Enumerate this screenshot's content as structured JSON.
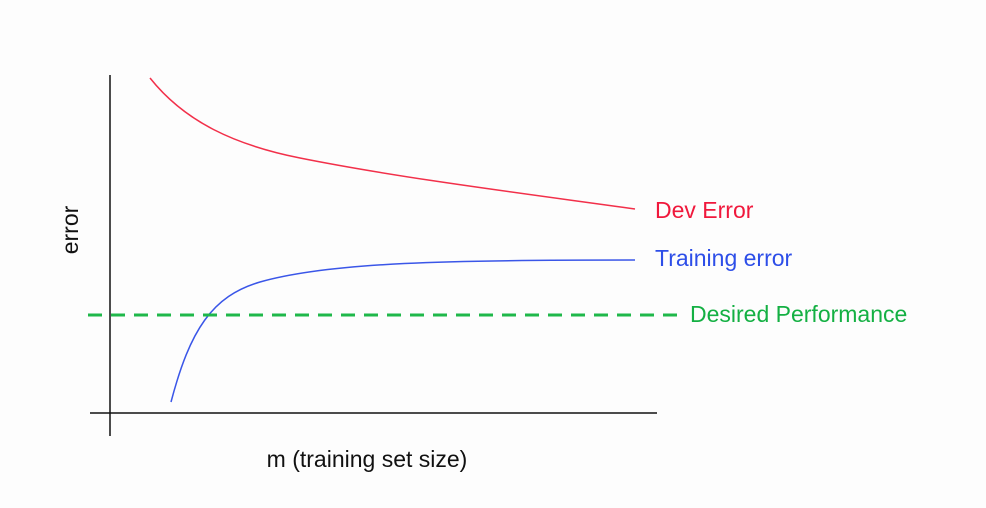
{
  "diagram": {
    "y_axis_label": "error",
    "x_axis_label": "m (training set size)",
    "curves": [
      {
        "label": "Dev Error"
      },
      {
        "label": "Training error"
      },
      {
        "label": "Desired Performance"
      }
    ]
  }
}
